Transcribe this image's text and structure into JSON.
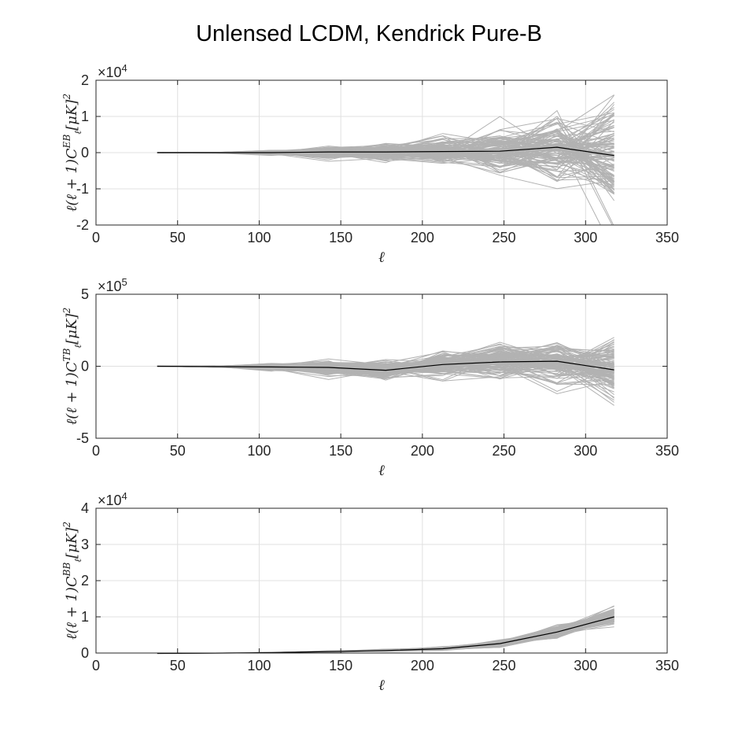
{
  "figure": {
    "title": "Unlensed LCDM, Kendrick Pure-B"
  },
  "style": {
    "realization_color": "#b2b2b2",
    "mean_color": "#000000",
    "grid_color": "#e0e0e0",
    "axis_color": "#262626"
  },
  "chart_data": [
    {
      "type": "line",
      "xlabel": "ℓ",
      "ylabel": "ℓ(ℓ+1)C_ℓ^{EB}[μK]^2",
      "ylabel_parts": {
        "prefix": "ℓ(ℓ + 1)C",
        "sub": "ℓ",
        "sup": "EB",
        "suffix": "[μK]",
        "power": "2"
      },
      "exponent": {
        "base": "×10",
        "power": "4"
      },
      "xlim": [
        0,
        350
      ],
      "ylim": [
        -2,
        2
      ],
      "xticks": [
        0,
        50,
        100,
        150,
        200,
        250,
        300,
        350
      ],
      "yticks": [
        -2,
        -1,
        0,
        1,
        2
      ],
      "ytick_labels": [
        "-2",
        "-1",
        "0",
        "1",
        "2"
      ],
      "grid": true,
      "x": [
        37.5,
        72.5,
        107.5,
        142.5,
        177.5,
        212.5,
        247.5,
        282.5,
        317.5
      ],
      "mean": [
        0,
        0,
        0,
        0.02,
        0.02,
        0.03,
        0.04,
        0.15,
        -0.08
      ],
      "spread": [
        0.002,
        0.01,
        0.06,
        0.17,
        0.25,
        0.35,
        0.65,
        1.0,
        1.7
      ],
      "n_realizations": 120
    },
    {
      "type": "line",
      "xlabel": "ℓ",
      "ylabel": "ℓ(ℓ+1)C_ℓ^{TB}[μK]^2",
      "ylabel_parts": {
        "prefix": "ℓ(ℓ + 1)C",
        "sub": "ℓ",
        "sup": "TB",
        "suffix": "[μK]",
        "power": "2"
      },
      "exponent": {
        "base": "×10",
        "power": "5"
      },
      "xlim": [
        0,
        350
      ],
      "ylim": [
        -5,
        5
      ],
      "xticks": [
        0,
        50,
        100,
        150,
        200,
        250,
        300,
        350
      ],
      "yticks": [
        -5,
        0,
        5
      ],
      "ytick_labels": [
        "-5",
        "0",
        "5"
      ],
      "grid": true,
      "x": [
        37.5,
        72.5,
        107.5,
        142.5,
        177.5,
        212.5,
        247.5,
        282.5,
        317.5
      ],
      "mean": [
        0,
        -0.02,
        -0.05,
        -0.08,
        -0.28,
        0.12,
        0.3,
        0.35,
        -0.25
      ],
      "spread": [
        0.005,
        0.05,
        0.25,
        0.5,
        0.7,
        0.9,
        1.3,
        1.6,
        2.1
      ],
      "n_realizations": 120
    },
    {
      "type": "line",
      "xlabel": "ℓ",
      "ylabel": "ℓ(ℓ+1)C_ℓ^{BB}[μK]^2",
      "ylabel_parts": {
        "prefix": "ℓ(ℓ + 1)C",
        "sub": "ℓ",
        "sup": "BB",
        "suffix": "[μK]",
        "power": "2"
      },
      "exponent": {
        "base": "×10",
        "power": "4"
      },
      "xlim": [
        0,
        350
      ],
      "ylim": [
        0,
        4
      ],
      "xticks": [
        0,
        50,
        100,
        150,
        200,
        250,
        300,
        350
      ],
      "yticks": [
        0,
        1,
        2,
        3,
        4
      ],
      "ytick_labels": [
        "0",
        "1",
        "2",
        "3",
        "4"
      ],
      "grid": true,
      "x": [
        37.5,
        72.5,
        107.5,
        142.5,
        177.5,
        212.5,
        247.5,
        282.5,
        317.5
      ],
      "mean": [
        -0.01,
        -0.005,
        0.01,
        0.04,
        0.07,
        0.12,
        0.26,
        0.58,
        1.0
      ],
      "spread": [
        0.002,
        0.005,
        0.01,
        0.02,
        0.03,
        0.05,
        0.09,
        0.15,
        0.25
      ],
      "n_realizations": 120
    }
  ]
}
